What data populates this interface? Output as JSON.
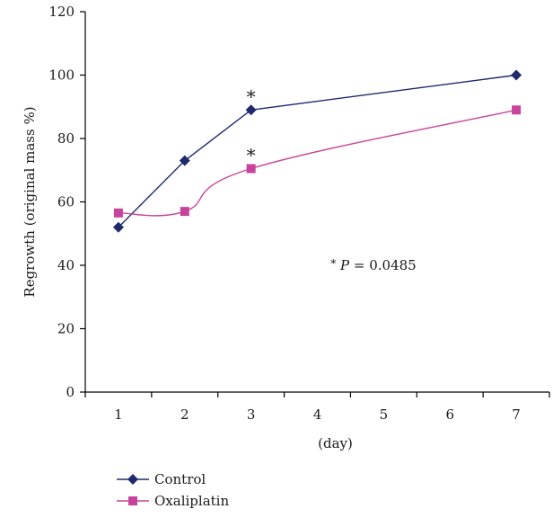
{
  "chart_data": {
    "type": "line",
    "title": "",
    "xlabel": "(day)",
    "ylabel": "Regrowth (original mass %)",
    "xlim": [
      0.5,
      7.5
    ],
    "ylim": [
      0,
      120
    ],
    "x_ticks": [
      1,
      2,
      3,
      4,
      5,
      6,
      7
    ],
    "y_ticks": [
      0,
      20,
      40,
      60,
      80,
      100,
      120
    ],
    "grid": false,
    "legend_position": "bottom-left",
    "series": [
      {
        "name": "Control",
        "color": "#1f2a6e",
        "marker": "diamond",
        "curve": "straight",
        "x": [
          1,
          2,
          3,
          7
        ],
        "y": [
          52,
          73,
          89,
          100
        ]
      },
      {
        "name": "Oxaliplatin",
        "color": "#c8449c",
        "marker": "square",
        "curve": "smooth",
        "x": [
          1,
          2,
          3,
          7
        ],
        "y": [
          56.5,
          57,
          70.5,
          89
        ]
      }
    ],
    "annotations": [
      {
        "text": "*",
        "series": 0,
        "x": 3
      },
      {
        "text": "*",
        "series": 1,
        "x": 3
      },
      {
        "text": "P = 0.0485",
        "prefix": "*",
        "x": 4.2,
        "y": 40
      }
    ]
  }
}
